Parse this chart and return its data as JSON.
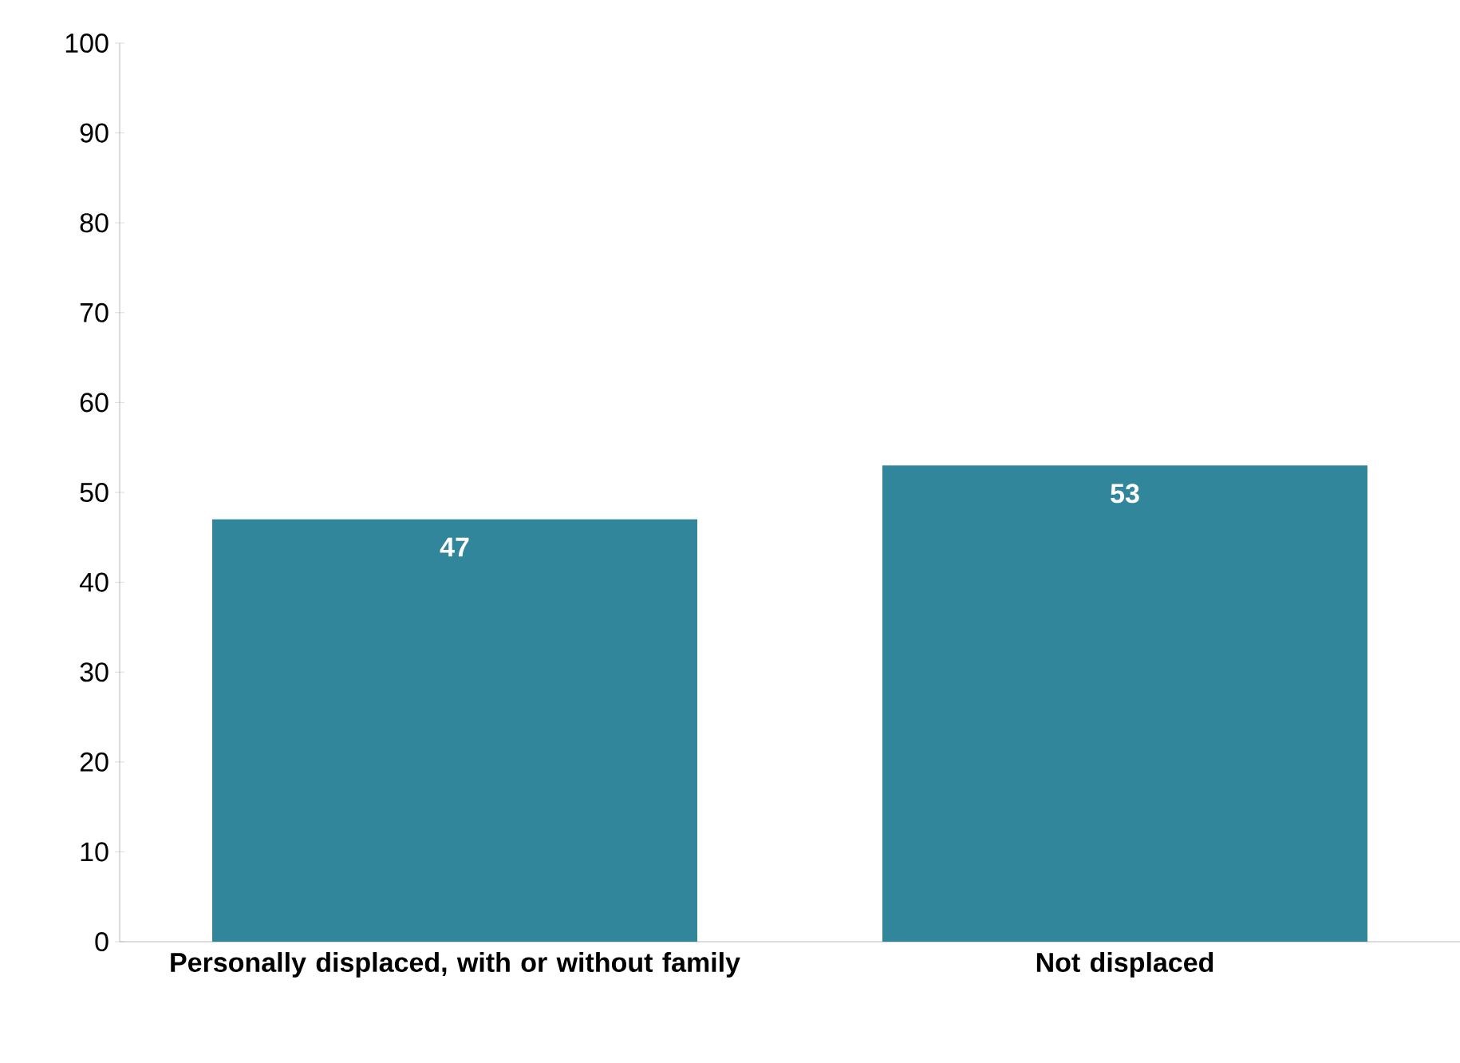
{
  "chart_data": {
    "type": "bar",
    "categories": [
      "Personally displaced, with or without family",
      "Not displaced"
    ],
    "values": [
      47,
      53
    ],
    "color": "#31869b",
    "ylim": [
      0,
      100
    ],
    "yticks": [
      0,
      10,
      20,
      30,
      40,
      50,
      60,
      70,
      80,
      90,
      100
    ],
    "data_labels": true,
    "grid": false
  }
}
